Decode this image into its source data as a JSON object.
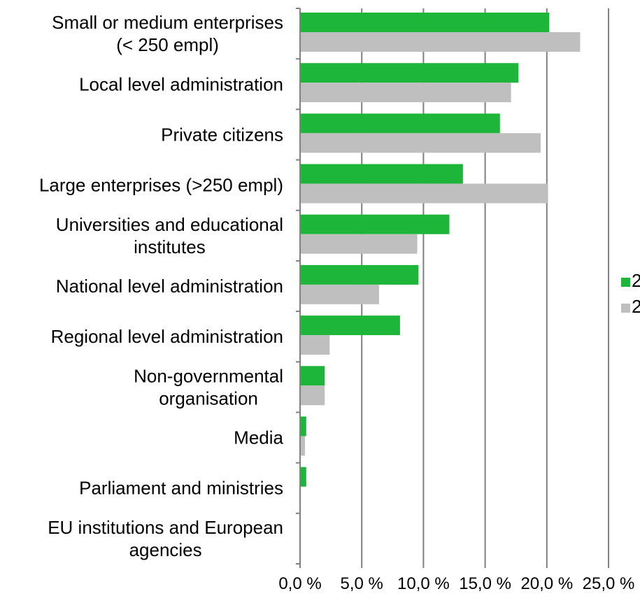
{
  "chart_data": {
    "type": "bar",
    "orientation": "horizontal",
    "categories": [
      [
        "Small or medium enterprises",
        "(< 250 empl)"
      ],
      [
        "Local level administration"
      ],
      [
        "Private citizens"
      ],
      [
        "Large enterprises (>250 empl)"
      ],
      [
        "Universities and educational",
        "institutes"
      ],
      [
        "National level administration"
      ],
      [
        "Regional level administration"
      ],
      [
        "Non-governmental",
        "organisation"
      ],
      [
        "Media"
      ],
      [
        "Parliament and ministries"
      ],
      [
        "EU institutions and European",
        "agencies"
      ]
    ],
    "series": [
      {
        "name": "2",
        "color": "#1db53a",
        "values": [
          20.2,
          17.7,
          16.2,
          13.2,
          12.1,
          9.6,
          8.1,
          2.0,
          0.5,
          0.5,
          0.0
        ]
      },
      {
        "name": "2",
        "color": "#bfbfbf",
        "values": [
          22.7,
          17.1,
          19.5,
          20.1,
          9.5,
          6.4,
          2.4,
          2.0,
          0.4,
          0.0,
          0.0
        ]
      }
    ],
    "xlim": [
      0,
      25
    ],
    "tick_labels": [
      "0,0 %",
      "5,0 %",
      "10,0 %",
      "15,0 %",
      "20,0 %",
      "25,0 %"
    ],
    "grid": true,
    "legend_position": "right"
  }
}
